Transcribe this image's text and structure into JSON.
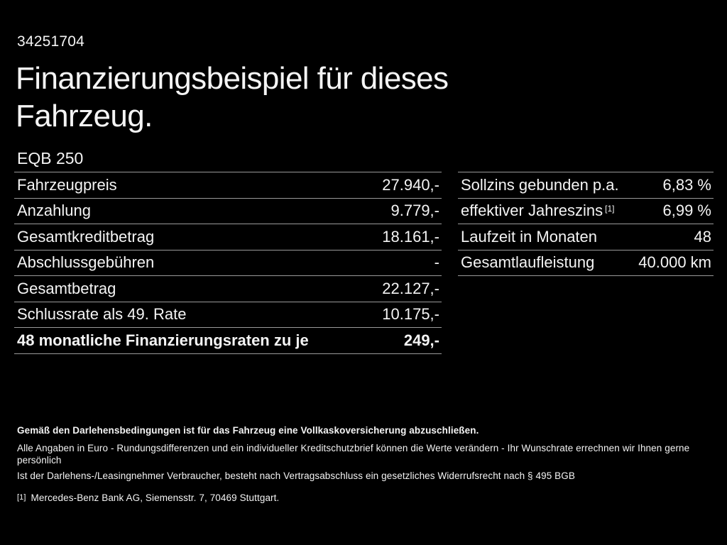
{
  "colors": {
    "background": "#000000",
    "text": "#f4f4f4",
    "divider": "#9a9a9a"
  },
  "header": {
    "document_id": "34251704",
    "title": "Finanzierungsbeispiel für dieses Fahrzeug.",
    "vehicle_model": "EQB 250"
  },
  "financing_table": {
    "rows": [
      {
        "label": "Fahrzeugpreis",
        "value": "27.940,-"
      },
      {
        "label": "Anzahlung",
        "value": "9.779,-"
      },
      {
        "label": "Gesamtkreditbetrag",
        "value": "18.161,-"
      },
      {
        "label": "Abschlussgebühren",
        "value": "-"
      },
      {
        "label": "Gesamtbetrag",
        "value": "22.127,-"
      },
      {
        "label": "Schlussrate als 49. Rate",
        "value": "10.175,-"
      },
      {
        "label": "48 monatliche Finanzierungsraten zu je",
        "value": "249,-",
        "bold": true
      }
    ]
  },
  "conditions_table": {
    "rows": [
      {
        "label": "Sollzins gebunden p.a.",
        "value": "6,83 %"
      },
      {
        "label": "effektiver Jahreszins",
        "sup": "[1]",
        "value": "6,99 %"
      },
      {
        "label": "Laufzeit in Monaten",
        "value": "48"
      },
      {
        "label": "Gesamtlaufleistung",
        "value": "40.000 km"
      }
    ]
  },
  "footer": {
    "insurance_note": "Gemäß den Darlehensbedingungen ist für das Fahrzeug eine Vollkaskoversicherung abzuschließen.",
    "disclaimer_line1": "Alle Angaben in Euro - Rundungsdifferenzen und ein individueller Kreditschutzbrief können die Werte verändern - Ihr Wunschrate errechnen wir Ihnen gerne persönlich",
    "disclaimer_line2": "Ist der Darlehens-/Leasingnehmer Verbraucher, besteht nach Vertragsabschluss ein gesetzliches Widerrufsrecht nach § 495 BGB",
    "footnote_marker": "[1]",
    "footnote_text": "Mercedes-Benz Bank AG, Siemensstr. 7, 70469 Stuttgart."
  }
}
